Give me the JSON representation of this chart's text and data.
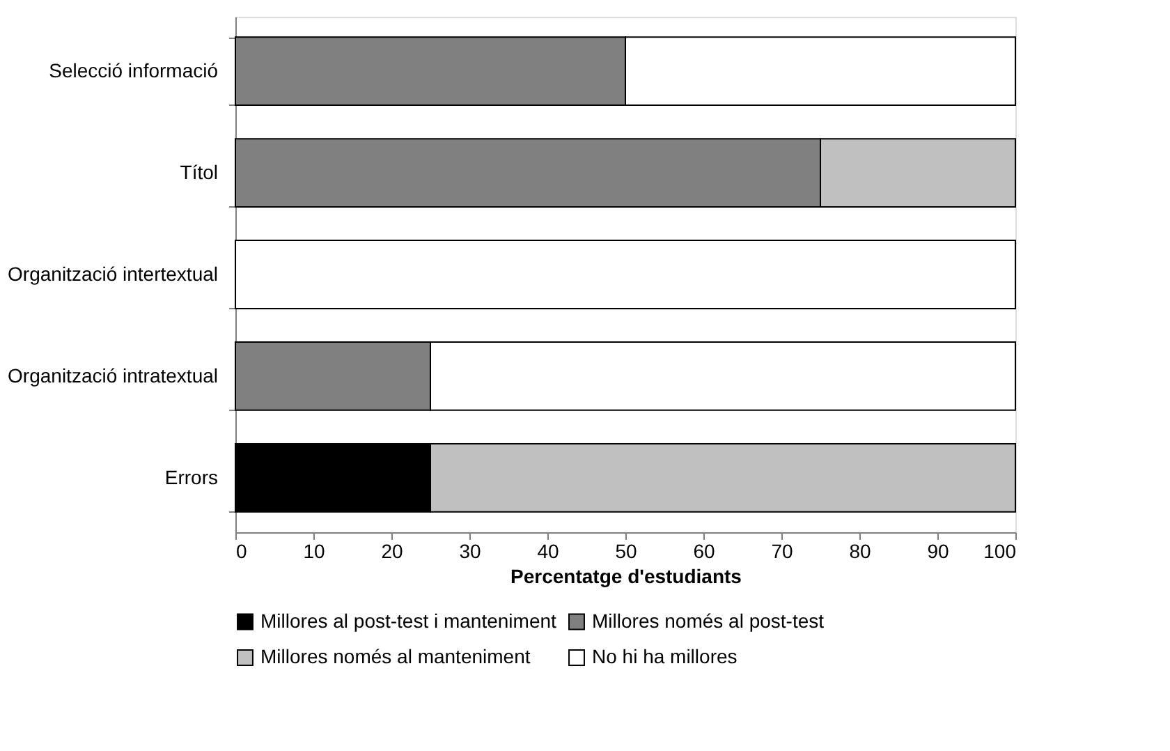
{
  "chart_data": {
    "type": "bar",
    "orientation": "horizontal",
    "stacked": true,
    "categories": [
      "Selecció informació",
      "Títol",
      "Organització intertextual",
      "Organització intratextual",
      "Errors"
    ],
    "series": [
      {
        "name": "Millores al post-test i manteniment",
        "color": "#000000",
        "values": [
          0,
          0,
          0,
          0,
          25
        ]
      },
      {
        "name": "Millores només al post-test",
        "color": "#808080",
        "values": [
          50,
          75,
          0,
          25,
          0
        ]
      },
      {
        "name": "Millores només al manteniment",
        "color": "#c0c0c0",
        "values": [
          0,
          25,
          0,
          0,
          75
        ]
      },
      {
        "name": "No hi ha millores",
        "color": "#ffffff",
        "values": [
          50,
          0,
          100,
          75,
          0
        ]
      }
    ],
    "xlabel": "Percentatge d'estudiants",
    "xlim": [
      0,
      100
    ],
    "xticks": [
      0,
      10,
      20,
      30,
      40,
      50,
      60,
      70,
      80,
      90,
      100
    ],
    "grid": false,
    "legend": "bottom"
  }
}
